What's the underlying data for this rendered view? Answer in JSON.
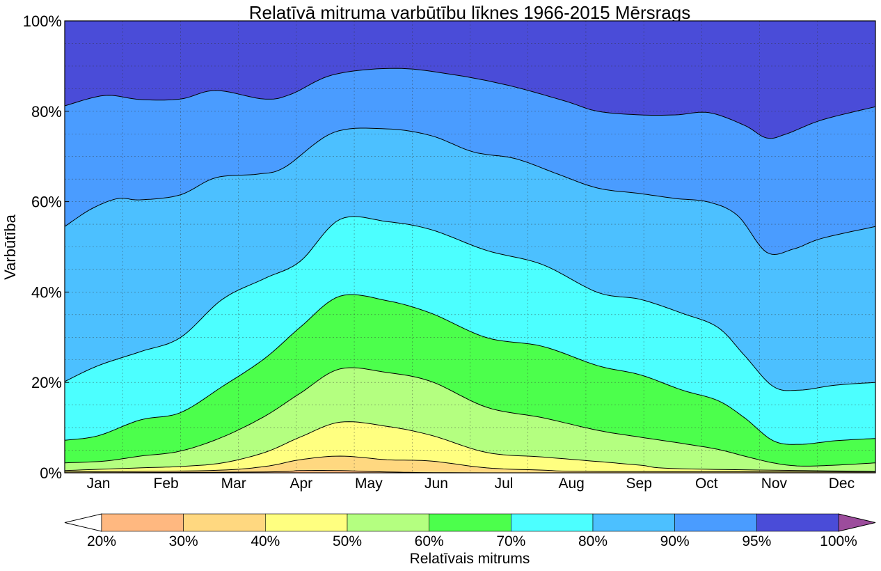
{
  "chart_data": {
    "type": "area",
    "title": "Relatīvā mitruma varbūtību līknes 1966-2015 Mērsrags",
    "xlabel": "",
    "ylabel": "Varbūtība",
    "x_unit": "day of year",
    "xlim": [
      0,
      365
    ],
    "ylim": [
      0,
      100
    ],
    "y_ticks": [
      "0%",
      "20%",
      "40%",
      "60%",
      "80%",
      "100%"
    ],
    "y_tick_values": [
      0,
      20,
      40,
      60,
      80,
      100
    ],
    "x_tick_labels": [
      "Jan",
      "Feb",
      "Mar",
      "Apr",
      "May",
      "Jun",
      "Jul",
      "Aug",
      "Sep",
      "Oct",
      "Nov",
      "Dec"
    ],
    "grid": true,
    "curves": [
      {
        "name": "30%",
        "x": [
          0,
          90,
          106,
          124,
          145,
          190,
          365
        ],
        "y": [
          0,
          0.2,
          0.5,
          0.5,
          0.2,
          0,
          0
        ]
      },
      {
        "name": "40%",
        "x": [
          0,
          65,
          90,
          106,
          124,
          145,
          165,
          190,
          215,
          240,
          365
        ],
        "y": [
          0.2,
          0.5,
          1.4,
          2.9,
          3.7,
          2.9,
          2.6,
          1.1,
          0.6,
          0.3,
          0.2
        ]
      },
      {
        "name": "50%",
        "x": [
          0,
          34,
          52,
          71,
          90,
          106,
          124,
          145,
          165,
          190,
          215,
          240,
          259,
          278,
          365
        ],
        "y": [
          0.5,
          1.1,
          1.4,
          2.2,
          4.5,
          7.9,
          11.2,
          10.3,
          8.3,
          4.5,
          3.5,
          2.5,
          1.7,
          0.9,
          0.3
        ]
      },
      {
        "name": "60%",
        "x": [
          0,
          18,
          34,
          52,
          71,
          90,
          106,
          124,
          145,
          165,
          190,
          215,
          240,
          259,
          278,
          294,
          306,
          319,
          331,
          347,
          365
        ],
        "y": [
          2.2,
          2.6,
          3.7,
          4.8,
          7.9,
          12.5,
          17.6,
          23,
          22.2,
          20.2,
          14.5,
          12.2,
          9.4,
          7.9,
          6.5,
          5.2,
          3.7,
          2.2,
          1.5,
          1.7,
          2.2
        ]
      },
      {
        "name": "70%",
        "x": [
          0,
          15,
          34,
          52,
          71,
          90,
          106,
          124,
          145,
          165,
          190,
          215,
          240,
          259,
          278,
          294,
          306,
          319,
          331,
          347,
          365
        ],
        "y": [
          7.2,
          8.2,
          11.7,
          13.3,
          19.1,
          25.3,
          32.2,
          39.1,
          38.1,
          35.3,
          29.9,
          28,
          23.7,
          21.7,
          18.3,
          16,
          12.2,
          7.1,
          6.3,
          7.1,
          7.6
        ]
      },
      {
        "name": "80%",
        "x": [
          0,
          15,
          34,
          52,
          71,
          90,
          106,
          124,
          145,
          165,
          190,
          215,
          240,
          259,
          278,
          294,
          306,
          319,
          331,
          347,
          365
        ],
        "y": [
          20.2,
          23.7,
          26.8,
          29.9,
          38.4,
          43,
          46.8,
          56.1,
          55.6,
          53.8,
          49.2,
          46.1,
          39.9,
          38.4,
          35.3,
          32.2,
          26,
          19.1,
          18.3,
          19.4,
          20
        ]
      },
      {
        "name": "90%",
        "x": [
          0,
          12,
          24,
          34,
          52,
          68,
          87,
          99,
          121,
          145,
          165,
          184,
          203,
          222,
          240,
          259,
          275,
          290,
          303,
          316,
          328,
          341,
          365
        ],
        "y": [
          54.5,
          58.4,
          60.7,
          60.4,
          61.5,
          65.3,
          66.1,
          67.6,
          75.3,
          76.1,
          74.6,
          71,
          69.5,
          66.1,
          63,
          61.8,
          60.7,
          59.9,
          56.9,
          48.8,
          49.5,
          51.9,
          54.5
        ]
      },
      {
        "name": "95%",
        "x": [
          0,
          18,
          34,
          52,
          68,
          90,
          102,
          121,
          149,
          175,
          200,
          225,
          240,
          259,
          275,
          290,
          306,
          316,
          325,
          341,
          365
        ],
        "y": [
          81.2,
          83.5,
          82.6,
          82.7,
          84.6,
          82.7,
          83.8,
          88.1,
          89.5,
          88.1,
          85.7,
          82.3,
          80,
          79.2,
          79.2,
          79.7,
          76.9,
          74.1,
          75,
          78.1,
          81
        ]
      }
    ],
    "colorbar": {
      "label": "Relatīvais mitrums",
      "tick_labels": [
        "20%",
        "30%",
        "40%",
        "50%",
        "60%",
        "70%",
        "80%",
        "90%",
        "95%",
        "100%"
      ],
      "colors": [
        "#ffb880",
        "#ffd880",
        "#ffff80",
        "#b4ff80",
        "#4cff4c",
        "#4cffff",
        "#4cc0ff",
        "#4a9cff",
        "#4a4cd8"
      ],
      "under_color": "#ffffff",
      "over_color": "#9c4c9c"
    }
  }
}
